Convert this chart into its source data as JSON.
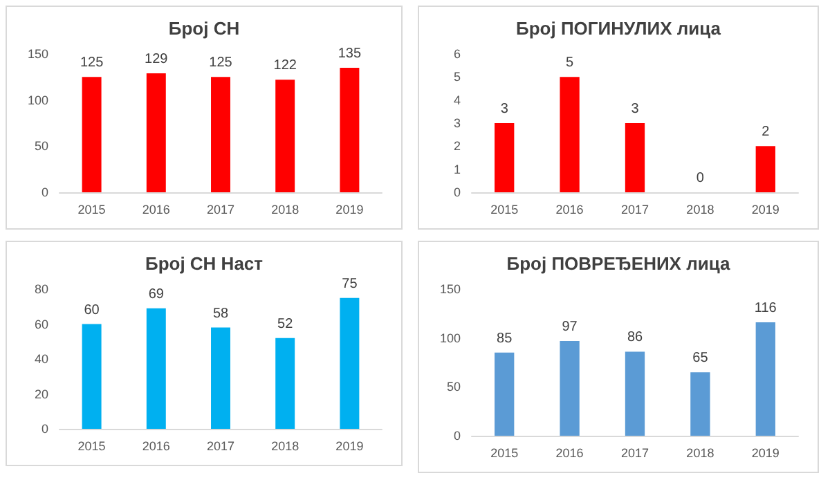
{
  "chart_data": [
    {
      "type": "bar",
      "title": "Број СН",
      "categories": [
        "2015",
        "2016",
        "2017",
        "2018",
        "2019"
      ],
      "values": [
        125,
        129,
        125,
        122,
        135
      ],
      "color": "#ff0000",
      "ylim": [
        0,
        150
      ],
      "yticks": [
        0,
        50,
        100,
        150
      ],
      "data_labels": true,
      "grid": false
    },
    {
      "type": "bar",
      "title": "Број ПОГИНУЛИХ лица",
      "categories": [
        "2015",
        "2016",
        "2017",
        "2018",
        "2019"
      ],
      "values": [
        3,
        5,
        3,
        0,
        2
      ],
      "color": "#ff0000",
      "ylim": [
        0,
        6
      ],
      "yticks": [
        0,
        1,
        2,
        3,
        4,
        5,
        6
      ],
      "data_labels": true,
      "grid": false
    },
    {
      "type": "bar",
      "title": "Број СН Наст",
      "categories": [
        "2015",
        "2016",
        "2017",
        "2018",
        "2019"
      ],
      "values": [
        60,
        69,
        58,
        52,
        75
      ],
      "color": "#00b0f0",
      "ylim": [
        0,
        80
      ],
      "yticks": [
        0,
        20,
        40,
        60,
        80
      ],
      "data_labels": true,
      "grid": false
    },
    {
      "type": "bar",
      "title": "Број ПОВРЕЂЕНИХ лица",
      "categories": [
        "2015",
        "2016",
        "2017",
        "2018",
        "2019"
      ],
      "values": [
        85,
        97,
        86,
        65,
        116
      ],
      "color": "#5b9bd5",
      "ylim": [
        0,
        150
      ],
      "yticks": [
        0,
        50,
        100,
        150
      ],
      "data_labels": true,
      "grid": false
    }
  ]
}
